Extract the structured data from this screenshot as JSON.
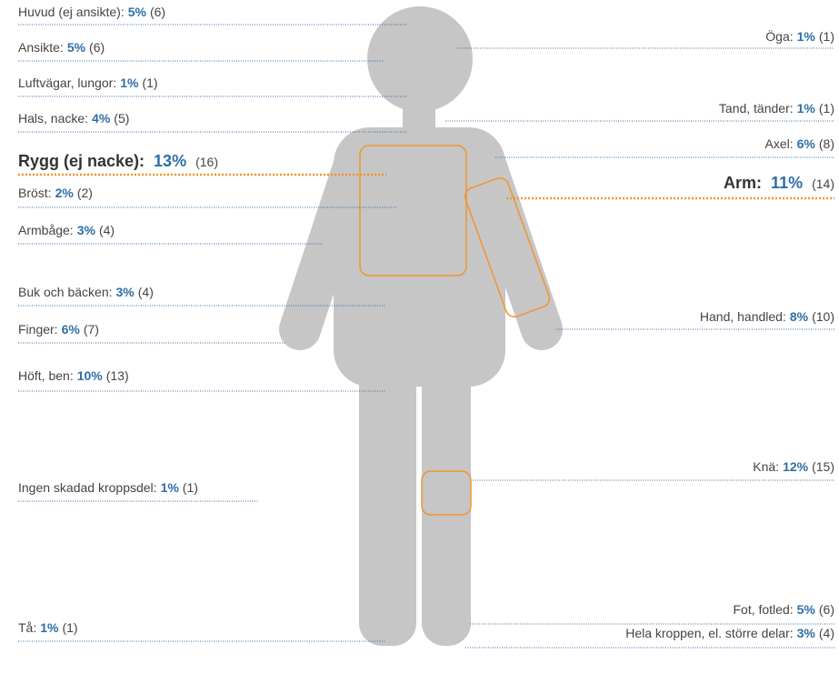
{
  "left": [
    {
      "name": "Huvud (ej ansikte):",
      "percent": "5%",
      "count": "(6)"
    },
    {
      "name": "Ansikte:",
      "percent": "5%",
      "count": "(6)"
    },
    {
      "name": "Luftvägar, lungor:",
      "percent": "1%",
      "count": "(1)"
    },
    {
      "name": "Hals, nacke:",
      "percent": "4%",
      "count": "(5)"
    },
    {
      "name": "Rygg (ej nacke):",
      "percent": "13%",
      "count": "(16)"
    },
    {
      "name": "Bröst:",
      "percent": "2%",
      "count": "(2)"
    },
    {
      "name": "Armbåge:",
      "percent": "3%",
      "count": "(4)"
    },
    {
      "name": "Buk och bäcken:",
      "percent": "3%",
      "count": "(4)"
    },
    {
      "name": "Finger:",
      "percent": "6%",
      "count": "(7)"
    },
    {
      "name": "Höft, ben:",
      "percent": "10%",
      "count": "(13)"
    },
    {
      "name": "Ingen skadad kroppsdel:",
      "percent": "1%",
      "count": "(1)"
    },
    {
      "name": "Tå:",
      "percent": "1%",
      "count": "(1)"
    }
  ],
  "right": [
    {
      "name": "Öga:",
      "percent": "1%",
      "count": "(1)"
    },
    {
      "name": "Tand, tänder:",
      "percent": "1%",
      "count": "(1)"
    },
    {
      "name": "Axel:",
      "percent": "6%",
      "count": "(8)"
    },
    {
      "name": "Arm:",
      "percent": "11%",
      "count": "(14)"
    },
    {
      "name": "Hand, handled:",
      "percent": "8%",
      "count": "(10)"
    },
    {
      "name": "Knä:",
      "percent": "12%",
      "count": "(15)"
    },
    {
      "name": "Fot, fotled:",
      "percent": "5%",
      "count": "(6)"
    },
    {
      "name": "Hela kroppen, el. större delar:",
      "percent": "3%",
      "count": "(4)"
    }
  ]
}
